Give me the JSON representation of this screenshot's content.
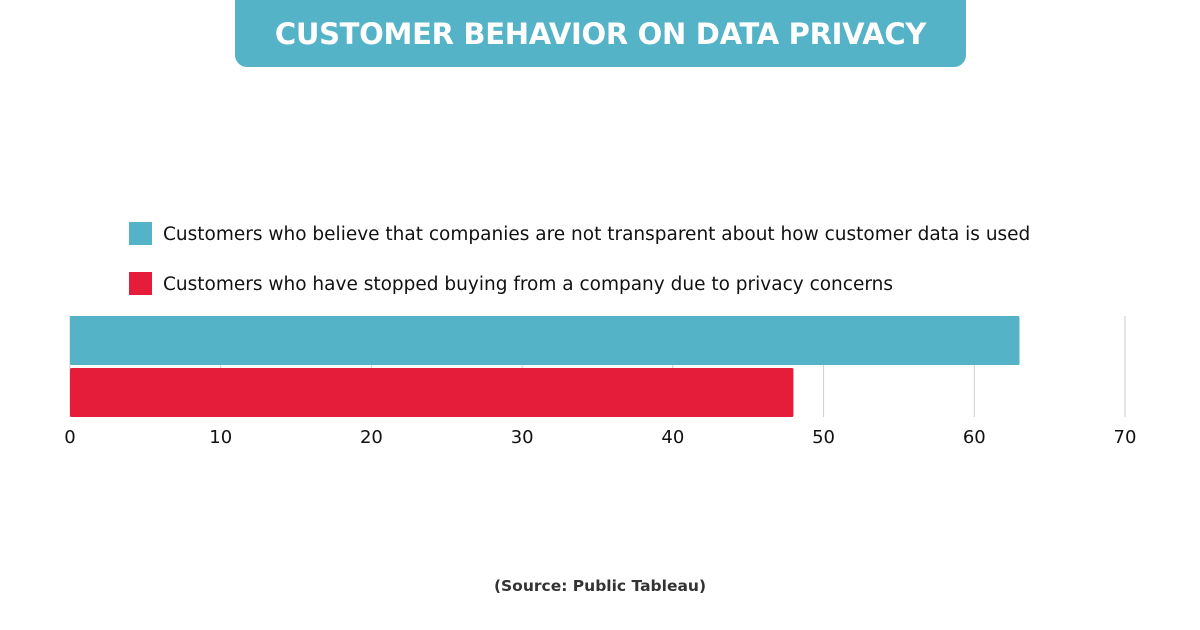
{
  "title": "CUSTOMER BEHAVIOR ON DATA PRIVACY",
  "source": "(Source: Public Tableau)",
  "colors": {
    "banner": "#55b3c8",
    "grid": "#cccccc"
  },
  "chart_data": {
    "type": "bar",
    "orientation": "horizontal",
    "title": "CUSTOMER BEHAVIOR ON DATA PRIVACY",
    "xlabel": "",
    "ylabel": "",
    "xlim": [
      0,
      70
    ],
    "ticks": [
      0,
      10,
      20,
      30,
      40,
      50,
      60,
      70
    ],
    "grid": true,
    "legend_position": "top-left",
    "series": [
      {
        "name": "Customers who believe that companies are not transparent about how customer data is used",
        "value": 63,
        "color": "#55b3c8"
      },
      {
        "name": "Customers who have stopped buying from a company due to privacy concerns",
        "value": 48,
        "color": "#e51d3a"
      }
    ]
  }
}
